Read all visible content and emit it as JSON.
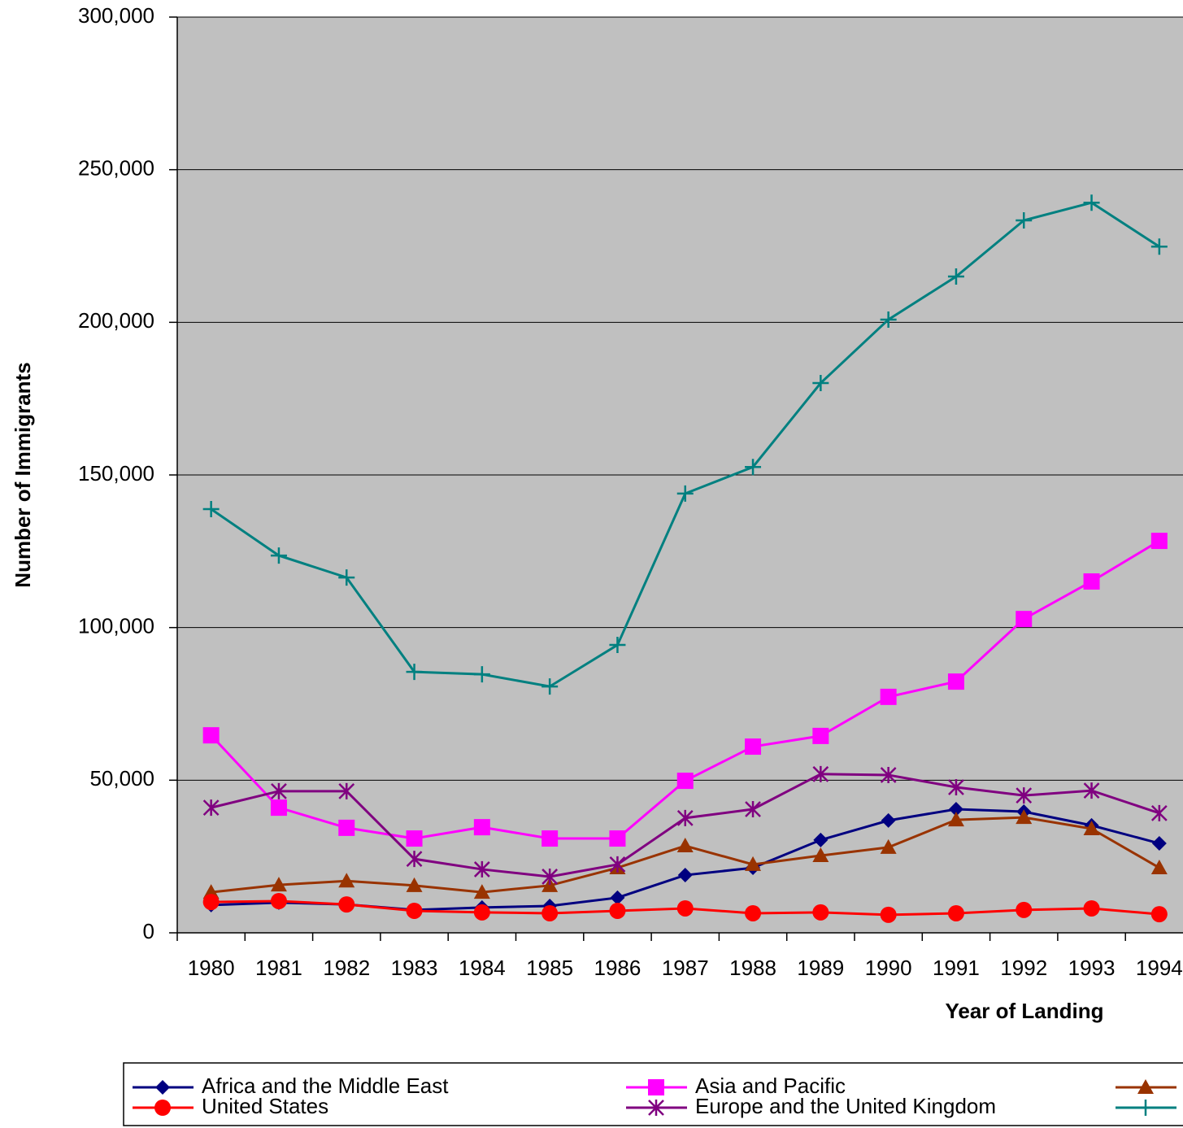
{
  "chart_data": {
    "type": "line",
    "y_label": "Number of Immigrants",
    "x_label": "Year of Landing",
    "categories": [
      "1980",
      "1981",
      "1982",
      "1983",
      "1984",
      "1985",
      "1986",
      "1987",
      "1988",
      "1989",
      "1990",
      "1991",
      "1992",
      "1993",
      "1994"
    ],
    "ylim": [
      0,
      300000
    ],
    "yticks": [
      0,
      {
        "value": 50000,
        "label": "50,000"
      },
      {
        "value": 100000,
        "label": "100,000"
      },
      {
        "value": 150000,
        "label": "150,000"
      },
      {
        "value": 200000,
        "label": "200,000"
      },
      {
        "value": 250000,
        "label": "250,000"
      },
      {
        "value": 300000,
        "label": "300,000"
      }
    ],
    "grid": true,
    "plot_background": "#c0c0c0",
    "series": [
      {
        "name": "Africa and the Middle East",
        "color": "#000080",
        "marker": "diamond",
        "values": [
          9100,
          9900,
          9300,
          7500,
          8300,
          8800,
          11500,
          18900,
          21300,
          30400,
          36800,
          40500,
          39700,
          35200,
          29300
        ]
      },
      {
        "name": "Asia and Pacific",
        "color": "#ff00ff",
        "marker": "square",
        "values": [
          64700,
          41000,
          34400,
          30900,
          34600,
          30900,
          30900,
          49800,
          61000,
          64500,
          77300,
          82300,
          102800,
          115100,
          128400
        ]
      },
      {
        "color": "#993300",
        "marker": "triangle",
        "values": [
          13300,
          15700,
          17000,
          15500,
          13300,
          15500,
          21300,
          28500,
          22400,
          25300,
          28000,
          37000,
          37800,
          34100,
          21300
        ]
      },
      {
        "name": "United States",
        "color": "#ff0000",
        "marker": "circle",
        "values": [
          10100,
          10400,
          9300,
          7200,
          6700,
          6400,
          7200,
          8000,
          6400,
          6700,
          5900,
          6400,
          7500,
          8000,
          6100
        ]
      },
      {
        "name": "Europe and the United Kingdom",
        "color": "#800080",
        "marker": "asterisk",
        "values": [
          41000,
          46400,
          46400,
          24200,
          20800,
          18400,
          22400,
          37600,
          40500,
          52000,
          51700,
          47700,
          45000,
          46600,
          39200
        ]
      },
      {
        "color": "#008080",
        "marker": "plus",
        "values": [
          138800,
          123600,
          116400,
          85500,
          84700,
          80700,
          94300,
          143900,
          152600,
          180100,
          200900,
          215000,
          233400,
          239200,
          224800
        ]
      }
    ]
  }
}
